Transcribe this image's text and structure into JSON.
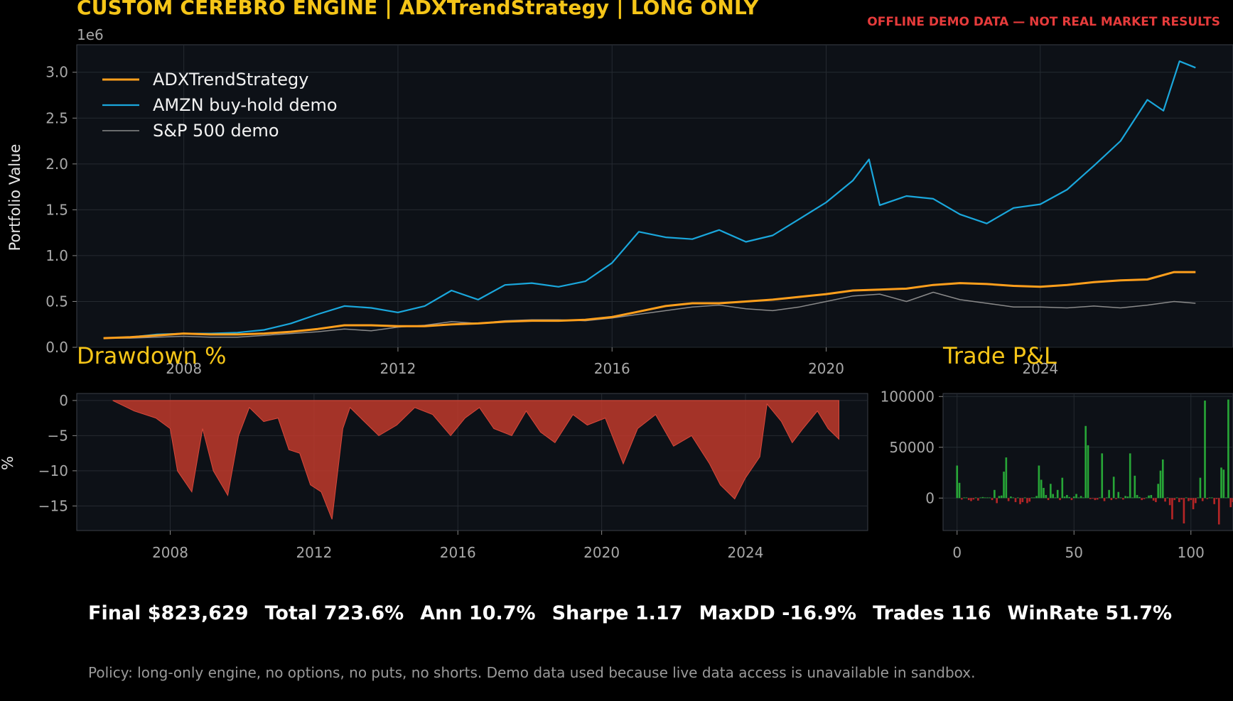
{
  "header": {
    "title": "CUSTOM CEREBRO ENGINE | ADXTrendStrategy | LONG ONLY",
    "warning": "OFFLINE DEMO DATA — NOT REAL MARKET RESULTS"
  },
  "colors": {
    "strategy": "#ff9f1c",
    "amzn": "#1aa7dc",
    "sp500": "#8a8a8a",
    "drawdown": "#c0392b",
    "pnl_pos": "#2ecc40",
    "pnl_neg": "#e02a2a",
    "title": "#f5c518"
  },
  "chart_data": [
    {
      "type": "line",
      "ylabel": "Portfolio Value",
      "y_scale_label": "1e6",
      "ylim": [
        0,
        3.3
      ],
      "xlim": [
        2006.0,
        2027.6
      ],
      "xticks": [
        "2008",
        "2012",
        "2016",
        "2020",
        "2024"
      ],
      "yticks": [
        "0.0",
        "0.5",
        "1.0",
        "1.5",
        "2.0",
        "2.5",
        "3.0"
      ],
      "legend_position": "top-left",
      "grid": true,
      "series": [
        {
          "name": "ADXTrendStrategy",
          "x": [
            2006.5,
            2007.0,
            2007.5,
            2008.0,
            2008.5,
            2009.0,
            2009.5,
            2010.0,
            2010.5,
            2011.0,
            2011.5,
            2012.0,
            2012.5,
            2013.0,
            2013.5,
            2014.0,
            2014.5,
            2015.0,
            2015.5,
            2016.0,
            2016.5,
            2017.0,
            2017.5,
            2018.0,
            2018.5,
            2019.0,
            2019.5,
            2020.0,
            2020.5,
            2021.0,
            2021.5,
            2022.0,
            2022.5,
            2023.0,
            2023.5,
            2024.0,
            2024.5,
            2025.0,
            2025.5,
            2026.0,
            2026.5,
            2026.9
          ],
          "values": [
            0.1,
            0.11,
            0.13,
            0.15,
            0.14,
            0.14,
            0.15,
            0.17,
            0.2,
            0.24,
            0.24,
            0.23,
            0.23,
            0.25,
            0.26,
            0.28,
            0.29,
            0.29,
            0.3,
            0.33,
            0.39,
            0.45,
            0.48,
            0.48,
            0.5,
            0.52,
            0.55,
            0.58,
            0.62,
            0.63,
            0.64,
            0.68,
            0.7,
            0.69,
            0.67,
            0.66,
            0.68,
            0.71,
            0.73,
            0.74,
            0.82,
            0.82
          ]
        },
        {
          "name": "AMZN buy-hold demo",
          "x": [
            2006.5,
            2007.0,
            2007.5,
            2008.0,
            2008.5,
            2009.0,
            2009.5,
            2010.0,
            2010.5,
            2011.0,
            2011.5,
            2012.0,
            2012.5,
            2013.0,
            2013.5,
            2014.0,
            2014.5,
            2015.0,
            2015.5,
            2016.0,
            2016.5,
            2017.0,
            2017.5,
            2018.0,
            2018.5,
            2019.0,
            2019.5,
            2020.0,
            2020.5,
            2020.8,
            2021.0,
            2021.5,
            2022.0,
            2022.5,
            2023.0,
            2023.5,
            2024.0,
            2024.5,
            2025.0,
            2025.5,
            2026.0,
            2026.3,
            2026.6,
            2026.9
          ],
          "values": [
            0.1,
            0.11,
            0.14,
            0.15,
            0.15,
            0.16,
            0.19,
            0.26,
            0.36,
            0.45,
            0.43,
            0.38,
            0.45,
            0.62,
            0.52,
            0.68,
            0.7,
            0.66,
            0.72,
            0.92,
            1.26,
            1.2,
            1.18,
            1.28,
            1.15,
            1.22,
            1.4,
            1.58,
            1.82,
            2.05,
            1.55,
            1.65,
            1.62,
            1.45,
            1.35,
            1.52,
            1.56,
            1.72,
            1.98,
            2.25,
            2.7,
            2.58,
            3.12,
            3.05
          ]
        },
        {
          "name": "S&P 500 demo",
          "x": [
            2006.5,
            2007.0,
            2007.5,
            2008.0,
            2008.5,
            2009.0,
            2009.5,
            2010.0,
            2010.5,
            2011.0,
            2011.5,
            2012.0,
            2012.5,
            2013.0,
            2013.5,
            2014.0,
            2014.5,
            2015.0,
            2015.5,
            2016.0,
            2016.5,
            2017.0,
            2017.5,
            2018.0,
            2018.5,
            2019.0,
            2019.5,
            2020.0,
            2020.5,
            2021.0,
            2021.5,
            2022.0,
            2022.5,
            2023.0,
            2023.5,
            2024.0,
            2024.5,
            2025.0,
            2025.5,
            2026.0,
            2026.5,
            2026.9
          ],
          "values": [
            0.1,
            0.1,
            0.11,
            0.12,
            0.11,
            0.11,
            0.13,
            0.15,
            0.17,
            0.2,
            0.18,
            0.22,
            0.24,
            0.28,
            0.26,
            0.29,
            0.3,
            0.3,
            0.29,
            0.32,
            0.36,
            0.4,
            0.44,
            0.46,
            0.42,
            0.4,
            0.44,
            0.5,
            0.56,
            0.58,
            0.5,
            0.6,
            0.52,
            0.48,
            0.44,
            0.44,
            0.43,
            0.45,
            0.43,
            0.46,
            0.5,
            0.48
          ]
        }
      ]
    },
    {
      "type": "area",
      "title": "Drawdown %",
      "ylabel": "%",
      "ylim": [
        -18.5,
        1.0
      ],
      "xlim": [
        2005.4,
        2027.4
      ],
      "xticks": [
        "2008",
        "2012",
        "2016",
        "2020",
        "2024"
      ],
      "yticks": [
        "0",
        "−5",
        "−10",
        "−15"
      ],
      "grid": true,
      "x": [
        2006.4,
        2007.0,
        2007.6,
        2008.0,
        2008.2,
        2008.6,
        2008.9,
        2009.2,
        2009.6,
        2009.9,
        2010.2,
        2010.6,
        2011.0,
        2011.3,
        2011.6,
        2011.9,
        2012.2,
        2012.5,
        2012.8,
        2013.0,
        2013.4,
        2013.8,
        2014.3,
        2014.8,
        2015.3,
        2015.8,
        2016.2,
        2016.6,
        2017.0,
        2017.5,
        2017.9,
        2018.3,
        2018.7,
        2019.2,
        2019.6,
        2020.1,
        2020.6,
        2021.0,
        2021.5,
        2022.0,
        2022.5,
        2023.0,
        2023.3,
        2023.7,
        2024.0,
        2024.4,
        2024.6,
        2025.0,
        2025.3,
        2025.6,
        2026.0,
        2026.3,
        2026.6
      ],
      "values": [
        0.0,
        -1.5,
        -2.5,
        -4.0,
        -10.0,
        -13.0,
        -4.0,
        -10.0,
        -13.5,
        -5.0,
        -1.0,
        -3.0,
        -2.5,
        -7.0,
        -7.5,
        -12.0,
        -13.0,
        -16.9,
        -4.0,
        -1.0,
        -3.0,
        -5.0,
        -3.5,
        -1.0,
        -2.0,
        -5.0,
        -2.5,
        -1.0,
        -4.0,
        -5.0,
        -1.5,
        -4.5,
        -6.0,
        -2.0,
        -3.5,
        -2.5,
        -9.0,
        -4.0,
        -2.0,
        -6.5,
        -5.0,
        -9.0,
        -12.0,
        -14.0,
        -11.0,
        -8.0,
        -0.5,
        -3.0,
        -6.0,
        -4.0,
        -1.5,
        -4.0,
        -5.5
      ]
    },
    {
      "type": "bar",
      "title": "Trade P&L",
      "ylim": [
        -32000,
        103000
      ],
      "xlim": [
        -6,
        118
      ],
      "xticks": [
        "0",
        "50",
        "100"
      ],
      "yticks": [
        "100000",
        "50000",
        "0"
      ],
      "grid": true,
      "values": [
        32000,
        15000,
        -1500,
        0,
        0,
        -2000,
        -3000,
        -1500,
        0,
        -2500,
        0,
        1000,
        0,
        0,
        0,
        -2000,
        8000,
        -5000,
        2000,
        2500,
        26000,
        40000,
        -3000,
        1500,
        0,
        -4000,
        0,
        -6000,
        -4000,
        0,
        -5000,
        -3500,
        500,
        0,
        2000,
        32000,
        18000,
        10000,
        3000,
        -2000,
        14000,
        4000,
        0,
        8000,
        -2000,
        20000,
        1500,
        3000,
        1000,
        -2000,
        1500,
        4000,
        500,
        2000,
        0,
        71000,
        52000,
        -1000,
        -500,
        -2000,
        -1500,
        0,
        44000,
        -3000,
        0,
        8000,
        -2000,
        21000,
        -1000,
        6000,
        500,
        -1500,
        2000,
        1500,
        44000,
        0,
        22000,
        3000,
        1000,
        -2000,
        -1000,
        0,
        2500,
        3000,
        -2500,
        -4000,
        14000,
        27000,
        38000,
        -3500,
        0,
        -7000,
        -21000,
        -2000,
        0,
        -4000,
        -1500,
        -25000,
        0,
        -3000,
        -2000,
        -11000,
        -5000,
        0,
        20000,
        -3000,
        96000,
        -1000,
        0,
        0,
        -6000,
        -1000,
        -26000,
        30000,
        28000,
        0,
        97000,
        -9000,
        -4000,
        0
      ]
    }
  ],
  "stats": {
    "final": "Final $823,629",
    "total": "Total 723.6%",
    "ann": "Ann 10.7%",
    "sharpe": "Sharpe 1.17",
    "maxdd": "MaxDD -16.9%",
    "trades": "Trades 116",
    "winrate": "WinRate 51.7%"
  },
  "footer": {
    "policy": "Policy: long-only engine, no options, no puts, no shorts. Demo data used because live data access is unavailable in sandbox."
  }
}
